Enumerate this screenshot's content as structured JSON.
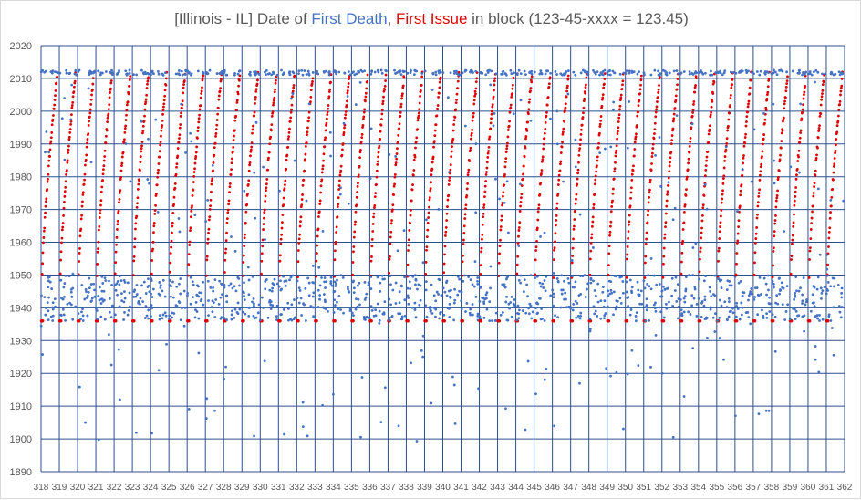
{
  "title": {
    "prefix": "[Illinois - IL] Date of ",
    "first_death": "First Death",
    "sep": ", ",
    "first_issue": "First Issue",
    "suffix": " in block (123-45-xxxx = 123.45)"
  },
  "colors": {
    "first_death": "#4472c4",
    "first_issue": "#e00000",
    "grid": "#2e4f8f",
    "text": "#595959"
  },
  "chart_data": {
    "type": "scatter",
    "xlim": [
      318,
      362
    ],
    "ylim": [
      1890,
      2020
    ],
    "x_ticks": [
      318,
      319,
      320,
      321,
      322,
      323,
      324,
      325,
      326,
      327,
      328,
      329,
      330,
      331,
      332,
      333,
      334,
      335,
      336,
      337,
      338,
      339,
      340,
      341,
      342,
      343,
      344,
      345,
      346,
      347,
      348,
      349,
      350,
      351,
      352,
      353,
      354,
      355,
      356,
      357,
      358,
      359,
      360,
      361,
      362
    ],
    "y_ticks": [
      1890,
      1900,
      1910,
      1920,
      1930,
      1940,
      1950,
      1960,
      1970,
      1980,
      1990,
      2000,
      2010,
      2020
    ],
    "grid": true,
    "series": [
      {
        "name": "First Death",
        "color": "#4472c4",
        "description_points": "per block: mostly 1936-1950 and 2011-2012, scattered 1899-2011"
      },
      {
        "name": "First Issue",
        "color": "#e00000",
        "description_points": "per whole-number block: 1936 baseline dashes, then rising 1950-2011 across block"
      }
    ]
  }
}
